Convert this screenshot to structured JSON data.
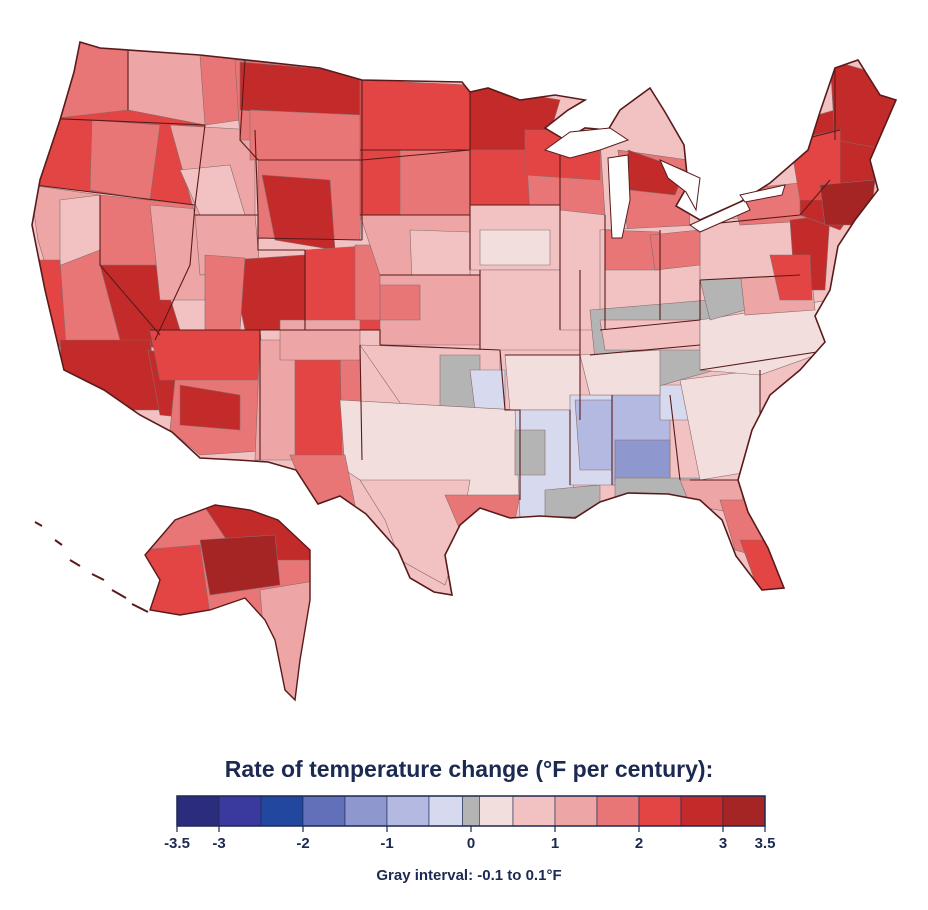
{
  "legend": {
    "title": "Rate of temperature change (°F per century):",
    "gray_note": "Gray interval: -0.1 to 0.1°F",
    "bins": [
      {
        "min": -3.5,
        "max": -3.0,
        "color": "#2b2d7c"
      },
      {
        "min": -3.0,
        "max": -2.5,
        "color": "#3a3a9e"
      },
      {
        "min": -2.5,
        "max": -2.0,
        "color": "#21479f"
      },
      {
        "min": -2.0,
        "max": -1.5,
        "color": "#6170b8"
      },
      {
        "min": -1.5,
        "max": -1.0,
        "color": "#8e98cf"
      },
      {
        "min": -1.0,
        "max": -0.5,
        "color": "#b3b9e0"
      },
      {
        "min": -0.5,
        "max": -0.1,
        "color": "#d7daee"
      },
      {
        "min": -0.1,
        "max": 0.1,
        "color": "#b4b4b4"
      },
      {
        "min": 0.1,
        "max": 0.5,
        "color": "#f3dede"
      },
      {
        "min": 0.5,
        "max": 1.0,
        "color": "#f2c2c2"
      },
      {
        "min": 1.0,
        "max": 1.5,
        "color": "#eda5a5"
      },
      {
        "min": 1.5,
        "max": 2.0,
        "color": "#e97676"
      },
      {
        "min": 2.0,
        "max": 2.5,
        "color": "#e34545"
      },
      {
        "min": 2.5,
        "max": 3.0,
        "color": "#c32b2b"
      },
      {
        "min": 3.0,
        "max": 3.5,
        "color": "#a52525"
      }
    ],
    "ticks": [
      {
        "value": -3.5,
        "label": "-3.5"
      },
      {
        "value": -3,
        "label": "-3"
      },
      {
        "value": -2,
        "label": "-2"
      },
      {
        "value": -1,
        "label": "-1"
      },
      {
        "value": 0,
        "label": "0"
      },
      {
        "value": 1,
        "label": "1"
      },
      {
        "value": 2,
        "label": "2"
      },
      {
        "value": 3,
        "label": "3"
      },
      {
        "value": 3.5,
        "label": "3.5"
      }
    ]
  },
  "colors": {
    "border": "#5a1a1a",
    "text": "#1c2951"
  }
}
